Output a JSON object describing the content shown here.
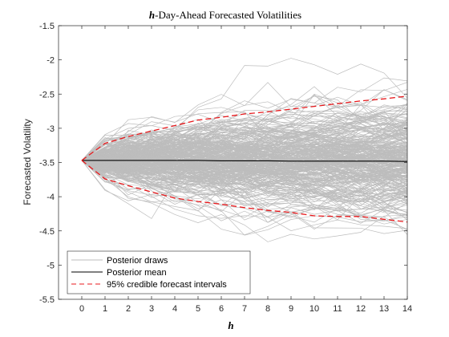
{
  "chart_data": {
    "type": "line",
    "title_prefix": "h",
    "title_rest": "-Day-Ahead Forecasted Volatilities",
    "xlabel": "h",
    "ylabel": "Forecasted Volatility",
    "xlim": [
      -1,
      14
    ],
    "ylim": [
      -5.5,
      -1.5
    ],
    "x_ticks": [
      0,
      1,
      2,
      3,
      4,
      5,
      6,
      7,
      8,
      9,
      10,
      11,
      12,
      13,
      14
    ],
    "y_ticks": [
      -1.5,
      -2,
      -2.5,
      -3,
      -3.5,
      -4,
      -4.5,
      -5,
      -5.5
    ],
    "y_tick_labels": [
      "-1.5",
      "-2",
      "-2.5",
      "-3",
      "-3.5",
      "-4",
      "-4.5",
      "-5",
      "-5.5"
    ],
    "grid": false,
    "legend_placement": "bottom-left",
    "colors": {
      "draws": "#bdbdbd",
      "mean": "#000000",
      "interval": "#e8191c"
    },
    "x": [
      0,
      1,
      2,
      3,
      4,
      5,
      6,
      7,
      8,
      9,
      10,
      11,
      12,
      13,
      14
    ],
    "series": [
      {
        "name": "Posterior mean",
        "values": [
          -3.47,
          -3.47,
          -3.47,
          -3.47,
          -3.47,
          -3.47,
          -3.475,
          -3.475,
          -3.475,
          -3.48,
          -3.48,
          -3.48,
          -3.48,
          -3.48,
          -3.485
        ]
      },
      {
        "name": "95% credible forecast intervals",
        "values": [
          -3.47,
          -3.22,
          -3.12,
          -3.04,
          -2.96,
          -2.88,
          -2.84,
          -2.79,
          -2.76,
          -2.72,
          -2.68,
          -2.64,
          -2.6,
          -2.57,
          -2.53
        ]
      },
      {
        "name": "95% credible forecast intervals",
        "values": [
          -3.47,
          -3.74,
          -3.84,
          -3.93,
          -4.02,
          -4.07,
          -4.11,
          -4.16,
          -4.2,
          -4.23,
          -4.28,
          -4.29,
          -4.29,
          -4.33,
          -4.37
        ]
      }
    ],
    "draws_label": "Posterior draws",
    "legend": [
      "Posterior draws",
      "Posterior mean",
      "95% credible forecast intervals"
    ]
  }
}
